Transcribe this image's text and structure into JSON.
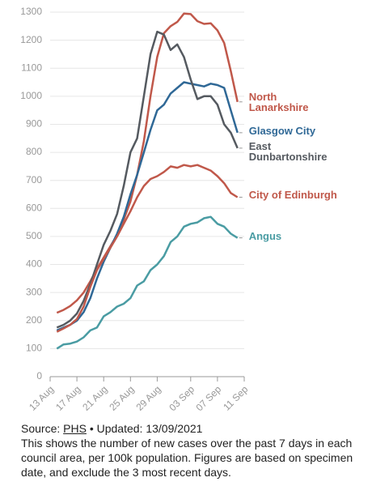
{
  "chart_data": {
    "type": "line",
    "xlim": [
      0,
      29
    ],
    "xticks": [
      {
        "value": 0,
        "label": "13 Aug"
      },
      {
        "value": 4,
        "label": "17 Aug"
      },
      {
        "value": 8,
        "label": "21 Aug"
      },
      {
        "value": 12,
        "label": "25 Aug"
      },
      {
        "value": 16,
        "label": "29 Aug"
      },
      {
        "value": 21,
        "label": "03 Sep"
      },
      {
        "value": 25,
        "label": "07 Sep"
      },
      {
        "value": 29,
        "label": "11 Sep"
      }
    ],
    "ylim": [
      0,
      1300
    ],
    "yticks": [
      0,
      100,
      200,
      300,
      400,
      500,
      600,
      700,
      800,
      900,
      1000,
      1100,
      1200,
      1300
    ],
    "grid": true,
    "x": [
      1,
      2,
      3,
      4,
      5,
      6,
      7,
      8,
      9,
      10,
      11,
      12,
      13,
      14,
      15,
      16,
      17,
      18,
      19,
      20,
      21,
      22,
      23,
      24,
      25,
      26,
      27,
      28
    ],
    "series": [
      {
        "name": "North Lanarkshire",
        "color": "#c0584a",
        "values": [
          228,
          238,
          252,
          272,
          300,
          340,
          385,
          425,
          465,
          505,
          560,
          625,
          720,
          840,
          1000,
          1140,
          1225,
          1250,
          1265,
          1295,
          1293,
          1268,
          1258,
          1260,
          1235,
          1190,
          1090,
          980
        ]
      },
      {
        "name": "Glasgow City",
        "color": "#2f6896",
        "values": [
          165,
          175,
          185,
          200,
          230,
          280,
          350,
          410,
          460,
          510,
          570,
          650,
          720,
          800,
          880,
          950,
          970,
          1010,
          1030,
          1050,
          1045,
          1040,
          1035,
          1045,
          1040,
          1030,
          950,
          870
        ]
      },
      {
        "name": "East Dunbartonshire",
        "color": "#555a60",
        "values": [
          175,
          185,
          200,
          225,
          270,
          330,
          400,
          470,
          520,
          580,
          680,
          800,
          850,
          1000,
          1150,
          1230,
          1220,
          1165,
          1185,
          1140,
          1060,
          990,
          1000,
          1000,
          970,
          900,
          870,
          815
        ]
      },
      {
        "name": "City of Edinburgh",
        "color": "#c0584a",
        "values": [
          160,
          172,
          185,
          205,
          250,
          320,
          380,
          420,
          460,
          500,
          545,
          590,
          640,
          680,
          705,
          715,
          730,
          750,
          745,
          755,
          750,
          755,
          745,
          735,
          715,
          690,
          655,
          640
        ]
      },
      {
        "name": "Angus",
        "color": "#4a9ca3",
        "values": [
          100,
          115,
          118,
          125,
          140,
          165,
          175,
          215,
          230,
          250,
          260,
          280,
          325,
          340,
          380,
          400,
          430,
          480,
          500,
          535,
          545,
          550,
          565,
          570,
          545,
          535,
          510,
          495
        ]
      }
    ]
  },
  "footer": {
    "source_label": "Source:",
    "source_link": "PHS",
    "updated": "• Updated: 13/09/2021",
    "note": "This shows the number of new cases over the past 7 days in each council area, per 100k population. Figures are based on specimen date, and exclude the 3 most recent days."
  }
}
